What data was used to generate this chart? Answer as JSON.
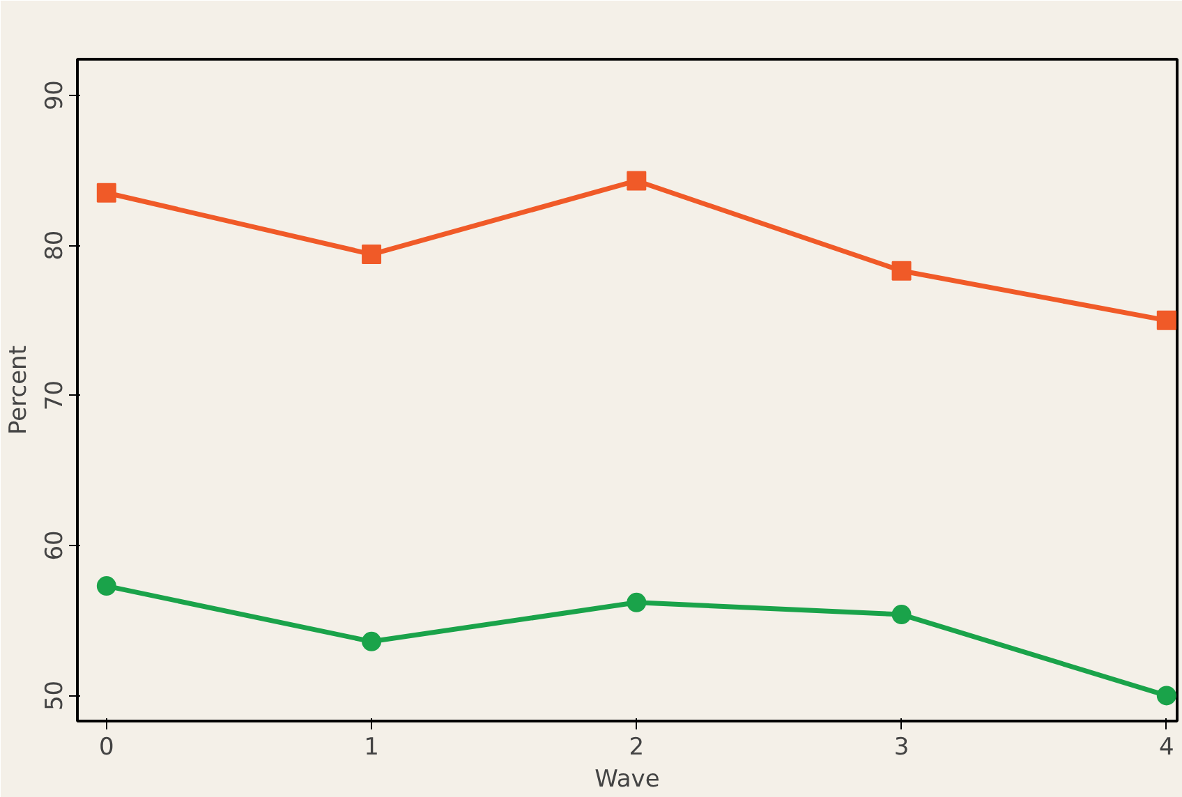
{
  "chart_data": {
    "type": "line",
    "xlabel": "Wave",
    "ylabel": "Percent",
    "x": [
      0,
      1,
      2,
      3,
      4
    ],
    "xlim": [
      -0.11,
      4.04
    ],
    "ylim": [
      48.3,
      92.4
    ],
    "xticks": [
      0,
      1,
      2,
      3,
      4
    ],
    "yticks": [
      50,
      60,
      70,
      80,
      90
    ],
    "grid": false,
    "line_style": "solid",
    "series": [
      {
        "color": "#f05a28",
        "marker": "square",
        "values": [
          83.5,
          79.4,
          84.3,
          78.3,
          75.0
        ]
      },
      {
        "color": "#1aa34a",
        "marker": "circle",
        "values": [
          57.3,
          53.6,
          56.2,
          55.4,
          50.0
        ]
      }
    ]
  }
}
